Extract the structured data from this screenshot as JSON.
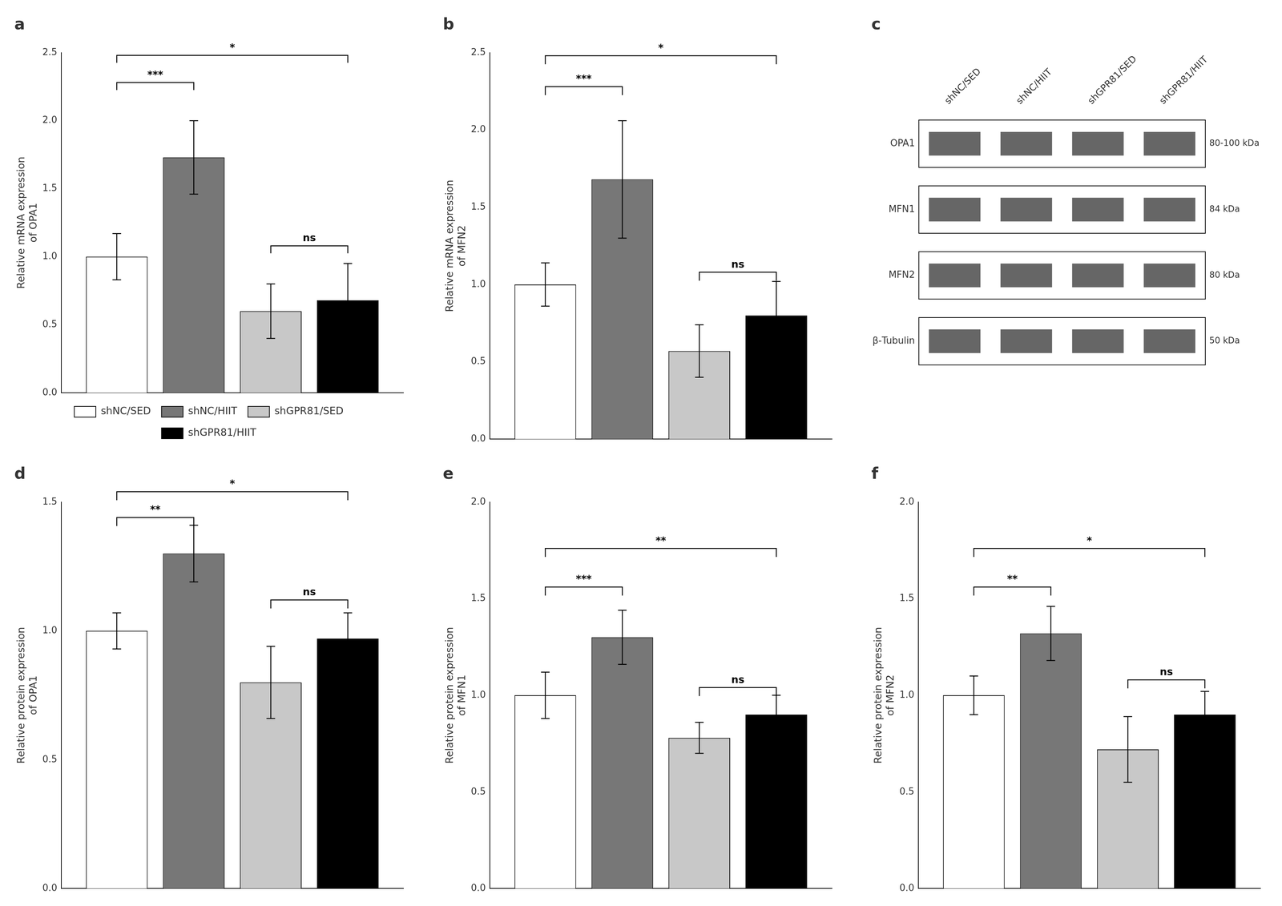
{
  "chart_data": [
    {
      "type": "bar",
      "title": "a",
      "categories": [
        null
      ],
      "tick_labels": "y",
      "grid": false,
      "legend": "bottom",
      "ylabel": "Relative mRNA expression\nof OPA1",
      "ylim": [
        0,
        2.5
      ],
      "yticks": [
        {
          "value": 0.0,
          "label": "0.0"
        },
        0.5,
        {
          "value": 1.0,
          "label": "1.0"
        },
        1.5,
        {
          "value": 2.0,
          "label": "2.0"
        },
        2.5
      ],
      "series": [
        {
          "name": "shNC/SED",
          "color": "white",
          "values": [
            1.0
          ],
          "errors": [
            0.17
          ]
        },
        {
          "name": "shNC/HIIT",
          "color": "#777777",
          "values": [
            1.73
          ],
          "errors": [
            0.27
          ]
        },
        {
          "name": "shGPR81/SED",
          "color": "#c8c8c8",
          "values": [
            0.6
          ],
          "errors": [
            0.2
          ]
        },
        {
          "name": "shGPR81/HIIT",
          "color": "black",
          "values": [
            0.68
          ],
          "errors": [
            0.27
          ]
        }
      ],
      "annotations": [
        {
          "text": "***",
          "from": "shNC/SED",
          "to": "shNC/HIIT",
          "y": 2.28
        },
        {
          "text": "*",
          "from": "shNC/SED",
          "to": "shGPR81/HIIT",
          "y": 2.48
        },
        {
          "text": "ns",
          "from": "shGPR81/SED",
          "to": "shGPR81/HIIT",
          "y": 1.08
        }
      ]
    },
    {
      "type": "bar",
      "title": "b",
      "categories": [
        null
      ],
      "tick_labels": "y",
      "grid": false,
      "ylabel": "Relative mRNA expression\nof MFN2",
      "ylim": [
        0,
        2.5
      ],
      "yticks": [
        {
          "value": 0.0,
          "label": "0.0"
        },
        0.5,
        {
          "value": 1.0,
          "label": "1.0"
        },
        1.5,
        {
          "value": 2.0,
          "label": "2.0"
        },
        2.5
      ],
      "series": [
        {
          "name": "shNC/SED",
          "color": "white",
          "values": [
            1.0
          ],
          "errors": [
            0.14
          ]
        },
        {
          "name": "shNC/HIIT",
          "color": "#777777",
          "values": [
            1.68
          ],
          "errors": [
            0.38
          ]
        },
        {
          "name": "shGPR81/SED",
          "color": "#c8c8c8",
          "values": [
            0.57
          ],
          "errors": [
            0.17
          ]
        },
        {
          "name": "shGPR81/HIIT",
          "color": "black",
          "values": [
            0.8
          ],
          "errors": [
            0.22
          ]
        }
      ],
      "annotations": [
        {
          "text": "***",
          "from": "shNC/SED",
          "to": "shNC/HIIT",
          "y": 2.28
        },
        {
          "text": "*",
          "from": "shNC/SED",
          "to": "shGPR81/HIIT",
          "y": 2.48
        },
        {
          "text": "ns",
          "from": "shGPR81/SED",
          "to": "shGPR81/HIIT",
          "y": 1.08
        }
      ]
    },
    {
      "type": "blot",
      "title": "c",
      "categories": [
        "shNC/SED",
        "shNC/HIIT",
        "shGPR81/SED",
        "shGPR81/HIIT"
      ],
      "y_categories": [
        "OPA1",
        "MFN1",
        "MFN2",
        "β-Tubulin"
      ],
      "y2_categories": [
        "80-100 kDa",
        "84 kDa",
        "80 kDa",
        "50 kDa"
      ]
    },
    {
      "type": "bar",
      "title": "d",
      "categories": [
        null
      ],
      "tick_labels": "y",
      "grid": false,
      "ylabel": "Relative protein expression\nof OPA1",
      "ylim": [
        0,
        1.5
      ],
      "yticks": [
        {
          "value": 0.0,
          "label": "0.0"
        },
        0.5,
        {
          "value": 1.0,
          "label": "1.0"
        },
        1.5
      ],
      "series": [
        {
          "name": "shNC/SED",
          "color": "white",
          "values": [
            1.0
          ],
          "errors": [
            0.07
          ]
        },
        {
          "name": "shNC/HIIT",
          "color": "#777777",
          "values": [
            1.3
          ],
          "errors": [
            0.11
          ]
        },
        {
          "name": "shGPR81/SED",
          "color": "#c8c8c8",
          "values": [
            0.8
          ],
          "errors": [
            0.14
          ]
        },
        {
          "name": "shGPR81/HIIT",
          "color": "black",
          "values": [
            0.97
          ],
          "errors": [
            0.1
          ]
        }
      ],
      "annotations": [
        {
          "text": "**",
          "from": "shNC/SED",
          "to": "shNC/HIIT",
          "y": 1.44
        },
        {
          "text": "*",
          "from": "shNC/SED",
          "to": "shGPR81/HIIT",
          "y": 1.54
        },
        {
          "text": "ns",
          "from": "shGPR81/SED",
          "to": "shGPR81/HIIT",
          "y": 1.12
        }
      ]
    },
    {
      "type": "bar",
      "title": "e",
      "categories": [
        null
      ],
      "tick_labels": "y",
      "grid": false,
      "ylabel": "Relative protein expression\nof MFN1",
      "ylim": [
        0,
        2.0
      ],
      "yticks": [
        {
          "value": 0.0,
          "label": "0.0"
        },
        0.5,
        {
          "value": 1.0,
          "label": "1.0"
        },
        1.5,
        {
          "value": 2.0,
          "label": "2.0"
        }
      ],
      "series": [
        {
          "name": "shNC/SED",
          "color": "white",
          "values": [
            1.0
          ],
          "errors": [
            0.12
          ]
        },
        {
          "name": "shNC/HIIT",
          "color": "#777777",
          "values": [
            1.3
          ],
          "errors": [
            0.14
          ]
        },
        {
          "name": "shGPR81/SED",
          "color": "#c8c8c8",
          "values": [
            0.78
          ],
          "errors": [
            0.08
          ]
        },
        {
          "name": "shGPR81/HIIT",
          "color": "black",
          "values": [
            0.9
          ],
          "errors": [
            0.1
          ]
        }
      ],
      "annotations": [
        {
          "text": "***",
          "from": "shNC/SED",
          "to": "shNC/HIIT",
          "y": 1.56
        },
        {
          "text": "**",
          "from": "shNC/SED",
          "to": "shGPR81/HIIT",
          "y": 1.76
        },
        {
          "text": "ns",
          "from": "shGPR81/SED",
          "to": "shGPR81/HIIT",
          "y": 1.04
        }
      ]
    },
    {
      "type": "bar",
      "title": "f",
      "categories": [
        null
      ],
      "tick_labels": "y",
      "grid": false,
      "ylabel": "Relative protein expression\nof MFN2",
      "ylim": [
        0,
        2.0
      ],
      "yticks": [
        {
          "value": 0.0,
          "label": "0.0"
        },
        0.5,
        {
          "value": 1.0,
          "label": "1.0"
        },
        1.5,
        {
          "value": 2.0,
          "label": "2.0"
        }
      ],
      "series": [
        {
          "name": "shNC/SED",
          "color": "white",
          "values": [
            1.0
          ],
          "errors": [
            0.1
          ]
        },
        {
          "name": "shNC/HIIT",
          "color": "#777777",
          "values": [
            1.32
          ],
          "errors": [
            0.14
          ]
        },
        {
          "name": "shGPR81/SED",
          "color": "#c8c8c8",
          "values": [
            0.72
          ],
          "errors": [
            0.17
          ]
        },
        {
          "name": "shGPR81/HIIT",
          "color": "black",
          "values": [
            0.9
          ],
          "errors": [
            0.12
          ]
        }
      ],
      "annotations": [
        {
          "text": "**",
          "from": "shNC/SED",
          "to": "shNC/HIIT",
          "y": 1.56
        },
        {
          "text": "*",
          "from": "shNC/SED",
          "to": "shGPR81/HIIT",
          "y": 1.76
        },
        {
          "text": "ns",
          "from": "shGPR81/SED",
          "to": "shGPR81/HIIT",
          "y": 1.08
        }
      ]
    }
  ]
}
